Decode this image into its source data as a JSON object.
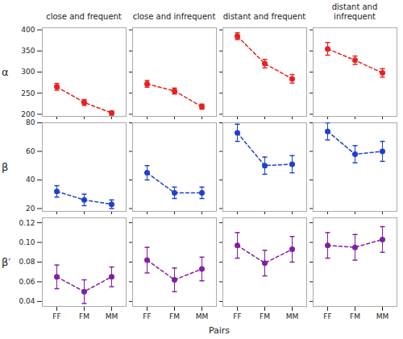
{
  "chart_data": {
    "type": "line",
    "xlabel": "Pairs",
    "categories": [
      "FF",
      "FM",
      "MM"
    ],
    "column_titles": [
      "close and frequent",
      "close and infrequent",
      "distant and frequent",
      "distant and infrequent"
    ],
    "marker": "circle",
    "line_style": "dashed",
    "grid": false,
    "rows": [
      {
        "label": "α",
        "color": "#e82020",
        "ylim": [
          195,
          405
        ],
        "yticks": [
          200,
          250,
          300,
          350,
          400
        ],
        "values": [
          [
            265,
            228,
            203
          ],
          [
            272,
            255,
            218
          ],
          [
            385,
            320,
            284
          ],
          [
            355,
            328,
            298
          ]
        ],
        "errors": [
          [
            8,
            7,
            5
          ],
          [
            8,
            7,
            6
          ],
          [
            8,
            10,
            10
          ],
          [
            15,
            10,
            10
          ]
        ]
      },
      {
        "label": "β",
        "color": "#2040cc",
        "ylim": [
          18,
          80
        ],
        "yticks": [
          20,
          40,
          60,
          80
        ],
        "values": [
          [
            32,
            26,
            23
          ],
          [
            45,
            31,
            31
          ],
          [
            73,
            50,
            51
          ],
          [
            74,
            58,
            60
          ]
        ],
        "errors": [
          [
            4,
            4,
            3
          ],
          [
            5,
            4,
            4
          ],
          [
            6,
            6,
            6
          ],
          [
            6,
            6,
            7
          ]
        ]
      },
      {
        "label": "β′",
        "color": "#8020a0",
        "ylim": [
          0.035,
          0.125
        ],
        "yticks": [
          0.04,
          0.06,
          0.08,
          {
            "value": 0.1,
            "label": "0.10"
          },
          0.12
        ],
        "values": [
          [
            0.065,
            0.05,
            0.065
          ],
          [
            0.082,
            0.062,
            0.073
          ],
          [
            0.097,
            0.079,
            0.093
          ],
          [
            0.097,
            0.095,
            0.103
          ]
        ],
        "errors": [
          [
            0.012,
            0.012,
            0.01
          ],
          [
            0.013,
            0.012,
            0.012
          ],
          [
            0.013,
            0.013,
            0.013
          ],
          [
            0.013,
            0.013,
            0.013
          ]
        ]
      }
    ]
  }
}
